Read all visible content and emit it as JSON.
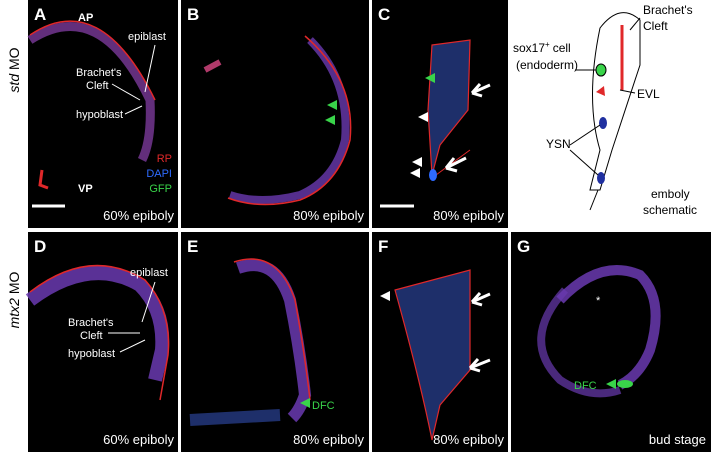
{
  "rows": [
    {
      "italic": "std",
      "rest": "MO"
    },
    {
      "italic": "mtx2",
      "rest": "MO"
    }
  ],
  "panels": {
    "A": {
      "letter": "A",
      "caption": "60% epiboly",
      "ap": "AP",
      "vp": "VP",
      "epiblast": "epiblast",
      "cleft": [
        "Brachet's",
        "Cleft"
      ],
      "hypoblast": "hypoblast",
      "legend": [
        "RP",
        "DAPI",
        "GFP"
      ]
    },
    "B": {
      "letter": "B",
      "caption": "80% epiboly"
    },
    "C": {
      "letter": "C",
      "caption": "80% epiboly"
    },
    "schematic": {
      "cleft": [
        "Brachet's",
        "Cleft"
      ],
      "cell": {
        "name": "sox17",
        "sup": "+",
        "rest": "cell",
        "note": "(endoderm)"
      },
      "evl": "EVL",
      "ysn": "YSN",
      "title": [
        "emboly",
        "schematic"
      ]
    },
    "D": {
      "letter": "D",
      "caption": "60% epiboly",
      "epiblast": "epiblast",
      "cleft": [
        "Brachet's",
        "Cleft"
      ],
      "hypoblast": "hypoblast"
    },
    "E": {
      "letter": "E",
      "caption": "80% epiboly",
      "dfc": "DFC"
    },
    "F": {
      "letter": "F",
      "caption": "80% epiboly"
    },
    "G": {
      "letter": "G",
      "caption": "bud stage",
      "star": "*",
      "dfc": "DFC"
    }
  }
}
